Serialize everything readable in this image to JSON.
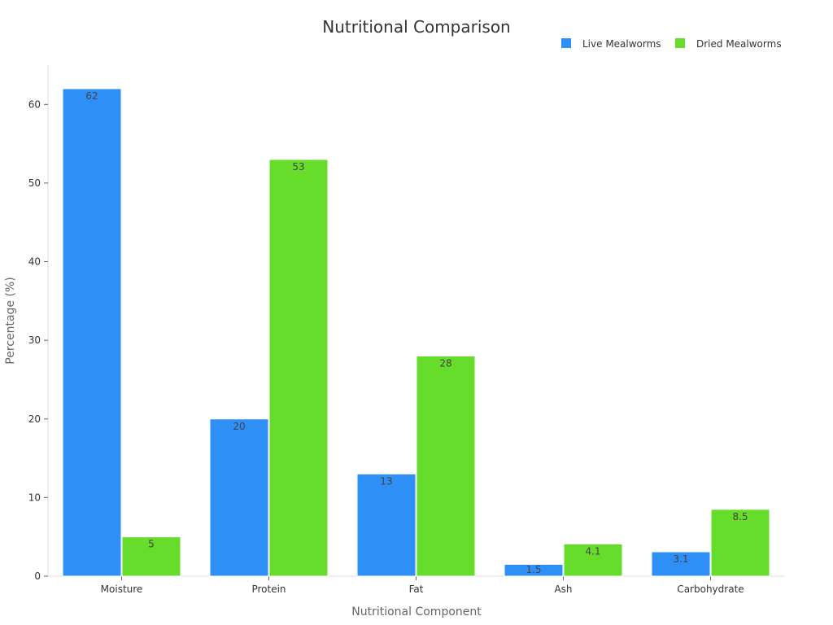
{
  "chart_data": {
    "type": "bar",
    "title": "Nutritional Comparison",
    "xlabel": "Nutritional Component",
    "ylabel": "Percentage (%)",
    "categories": [
      "Moisture",
      "Protein",
      "Fat",
      "Ash",
      "Carbohydrate"
    ],
    "series": [
      {
        "name": "Live Mealworms",
        "color": "#2e8ff7",
        "values": [
          62,
          20,
          13,
          1.5,
          3.1
        ],
        "labels": [
          "62",
          "20",
          "13",
          "1.5",
          "3.1"
        ]
      },
      {
        "name": "Dried Mealworms",
        "color": "#66dd2a",
        "values": [
          5,
          53,
          28,
          4.1,
          8.5
        ],
        "labels": [
          "5",
          "53",
          "28",
          "4.1",
          "8.5"
        ]
      }
    ],
    "ylim": [
      0,
      65
    ],
    "yticks": [
      0,
      10,
      20,
      30,
      40,
      50,
      60
    ],
    "ytick_labels": [
      "0",
      "10",
      "20",
      "30",
      "40",
      "50",
      "60"
    ],
    "grid": false,
    "legend_position": "top-right"
  }
}
